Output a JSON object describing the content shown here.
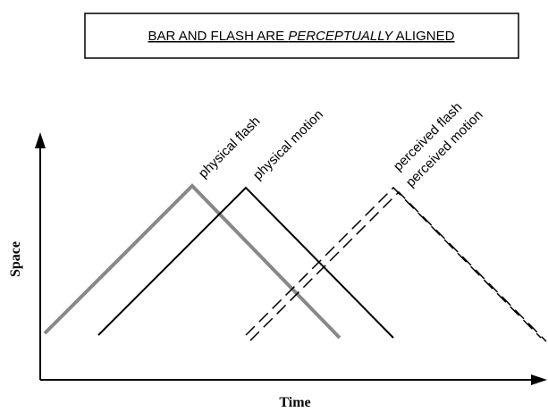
{
  "title": {
    "before": "BAR AND FLASH ARE ",
    "emphasis": "PERCEPTUALLY",
    "after": " ALIGNED"
  },
  "labels": {
    "physical_flash": "physical flash",
    "physical_motion": "physical motion",
    "perceived_flash": "perceived flash",
    "perceived_motion": "perceived motion"
  },
  "axes": {
    "y": "Space",
    "x": "Time"
  }
}
